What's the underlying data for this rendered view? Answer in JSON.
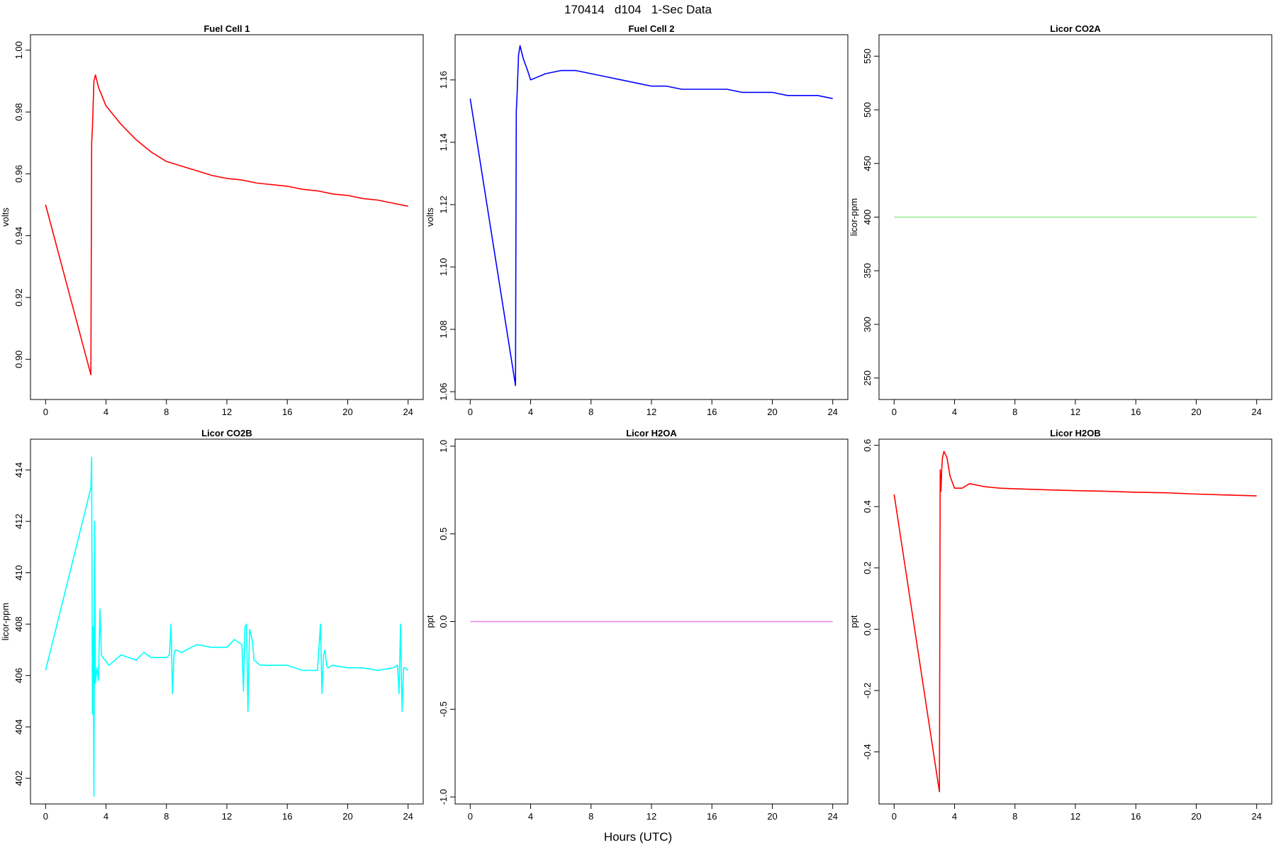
{
  "title": "170414   d104   1-Sec Data",
  "xlabel": "Hours (UTC)",
  "chart_data": [
    {
      "type": "line",
      "title": "Fuel Cell 1",
      "ylabel": "volts",
      "color": "#ff0000",
      "xlim": [
        -1,
        25
      ],
      "ylim": [
        0.887,
        1.005
      ],
      "xticks": [
        0,
        4,
        8,
        12,
        16,
        20,
        24
      ],
      "xticklabels": [
        "0",
        "4",
        "8",
        "12",
        "16",
        "20",
        "24"
      ],
      "yticks": [
        0.9,
        0.92,
        0.94,
        0.96,
        0.98,
        1.0
      ],
      "yticklabels": [
        "0.90",
        "0.92",
        "0.94",
        "0.96",
        "0.98",
        "1.00"
      ],
      "x": [
        0,
        3.0,
        3.05,
        3.1,
        3.2,
        3.3,
        3.5,
        4,
        5,
        6,
        7,
        8,
        9,
        10,
        11,
        12,
        13,
        14,
        15,
        16,
        17,
        18,
        19,
        20,
        21,
        22,
        23,
        24
      ],
      "y": [
        0.95,
        0.895,
        0.97,
        0.975,
        0.99,
        0.992,
        0.988,
        0.982,
        0.976,
        0.971,
        0.967,
        0.964,
        0.9625,
        0.961,
        0.9595,
        0.9585,
        0.958,
        0.957,
        0.9565,
        0.956,
        0.955,
        0.9545,
        0.9535,
        0.953,
        0.952,
        0.9515,
        0.9505,
        0.9495
      ]
    },
    {
      "type": "line",
      "title": "Fuel Cell 2",
      "ylabel": "volts",
      "color": "#0000ff",
      "xlim": [
        -1,
        25
      ],
      "ylim": [
        1.0575,
        1.1745
      ],
      "xticks": [
        0,
        4,
        8,
        12,
        16,
        20,
        24
      ],
      "xticklabels": [
        "0",
        "4",
        "8",
        "12",
        "16",
        "20",
        "24"
      ],
      "yticks": [
        1.06,
        1.08,
        1.1,
        1.12,
        1.14,
        1.16
      ],
      "yticklabels": [
        "1.06",
        "1.08",
        "1.10",
        "1.12",
        "1.14",
        "1.16"
      ],
      "x": [
        0,
        3.0,
        3.05,
        3.1,
        3.2,
        3.3,
        3.5,
        3.8,
        4,
        5,
        6,
        7,
        8,
        9,
        10,
        11,
        12,
        13,
        14,
        15,
        16,
        17,
        18,
        19,
        20,
        21,
        22,
        23,
        24
      ],
      "y": [
        1.154,
        1.062,
        1.15,
        1.155,
        1.168,
        1.171,
        1.167,
        1.163,
        1.16,
        1.162,
        1.163,
        1.163,
        1.162,
        1.161,
        1.16,
        1.159,
        1.158,
        1.158,
        1.157,
        1.157,
        1.157,
        1.157,
        1.156,
        1.156,
        1.156,
        1.155,
        1.155,
        1.155,
        1.154
      ]
    },
    {
      "type": "line",
      "title": "Licor CO2A",
      "ylabel": "licor-ppm",
      "color": "#90ee90",
      "xlim": [
        -1,
        25
      ],
      "ylim": [
        230,
        570
      ],
      "xticks": [
        0,
        4,
        8,
        12,
        16,
        20,
        24
      ],
      "xticklabels": [
        "0",
        "4",
        "8",
        "12",
        "16",
        "20",
        "24"
      ],
      "yticks": [
        250,
        300,
        350,
        400,
        450,
        500,
        550
      ],
      "yticklabels": [
        "250",
        "300",
        "350",
        "400",
        "450",
        "500",
        "550"
      ],
      "x": [
        0,
        24
      ],
      "y": [
        400,
        400
      ]
    },
    {
      "type": "line",
      "title": "Licor CO2B",
      "ylabel": "licor-ppm",
      "color": "#00ffff",
      "xlim": [
        -1,
        25
      ],
      "ylim": [
        401.0,
        415.2
      ],
      "xticks": [
        0,
        4,
        8,
        12,
        16,
        20,
        24
      ],
      "xticklabels": [
        "0",
        "4",
        "8",
        "12",
        "16",
        "20",
        "24"
      ],
      "yticks": [
        402,
        404,
        406,
        408,
        410,
        412,
        414
      ],
      "yticklabels": [
        "402",
        "404",
        "406",
        "408",
        "410",
        "412",
        "414"
      ],
      "x": [
        0,
        3.0,
        3.05,
        3.1,
        3.15,
        3.2,
        3.25,
        3.3,
        3.4,
        3.5,
        3.6,
        3.7,
        3.8,
        4.2,
        5,
        6,
        6.5,
        7,
        8,
        8.2,
        8.3,
        8.4,
        8.5,
        8.6,
        9,
        10,
        11,
        12,
        12.5,
        13,
        13.1,
        13.2,
        13.3,
        13.4,
        13.5,
        13.6,
        13.7,
        13.8,
        14,
        14.2,
        15,
        16,
        17,
        18,
        18.2,
        18.3,
        18.4,
        18.5,
        18.6,
        18.7,
        19,
        20,
        21,
        22,
        23,
        23.3,
        23.4,
        23.5,
        23.6,
        23.7,
        23.8,
        24
      ],
      "y": [
        406.2,
        413.3,
        414.5,
        404.5,
        407.9,
        401.3,
        412.0,
        405.7,
        406.3,
        405.8,
        408.6,
        406.8,
        406.7,
        406.4,
        406.8,
        406.6,
        406.9,
        406.7,
        406.7,
        406.8,
        408.0,
        405.3,
        406.8,
        407.0,
        406.9,
        407.2,
        407.1,
        407.1,
        407.4,
        407.2,
        405.4,
        407.9,
        408.0,
        404.6,
        407.8,
        407.6,
        407.3,
        406.6,
        406.5,
        406.4,
        406.4,
        406.4,
        406.2,
        406.2,
        408.0,
        405.3,
        406.8,
        407.0,
        406.4,
        406.3,
        406.4,
        406.3,
        406.3,
        406.2,
        406.3,
        406.4,
        405.3,
        408.0,
        404.6,
        406.3,
        406.3,
        406.2
      ]
    },
    {
      "type": "line",
      "title": "Licor H2OA",
      "ylabel": "ppt",
      "color": "#ee82ee",
      "xlim": [
        -1,
        25
      ],
      "ylim": [
        -1.04,
        1.04
      ],
      "xticks": [
        0,
        4,
        8,
        12,
        16,
        20,
        24
      ],
      "xticklabels": [
        "0",
        "4",
        "8",
        "12",
        "16",
        "20",
        "24"
      ],
      "yticks": [
        -1.0,
        -0.5,
        0.0,
        0.5,
        1.0
      ],
      "yticklabels": [
        "-1.0",
        "-0.5",
        "0.0",
        "0.5",
        "1.0"
      ],
      "x": [
        0,
        24
      ],
      "y": [
        0,
        0
      ]
    },
    {
      "type": "line",
      "title": "Licor H2OB",
      "ylabel": "ppt",
      "color": "#ff0000",
      "xlim": [
        -1,
        25
      ],
      "ylim": [
        -0.57,
        0.62
      ],
      "xticks": [
        0,
        4,
        8,
        12,
        16,
        20,
        24
      ],
      "xticklabels": [
        "0",
        "4",
        "8",
        "12",
        "16",
        "20",
        "24"
      ],
      "yticks": [
        -0.4,
        -0.2,
        0.0,
        0.2,
        0.4,
        0.6
      ],
      "yticklabels": [
        "-0.4",
        "-0.2",
        "0.0",
        "0.2",
        "0.4",
        "0.6"
      ],
      "x": [
        0,
        3.0,
        3.05,
        3.1,
        3.15,
        3.2,
        3.3,
        3.5,
        3.7,
        4.0,
        4.5,
        5,
        6,
        7,
        8,
        10,
        12,
        14,
        16,
        18,
        20,
        22,
        24
      ],
      "y": [
        0.44,
        -0.53,
        0.52,
        0.45,
        0.52,
        0.56,
        0.58,
        0.56,
        0.5,
        0.46,
        0.46,
        0.475,
        0.465,
        0.46,
        0.458,
        0.455,
        0.452,
        0.45,
        0.447,
        0.445,
        0.441,
        0.438,
        0.435
      ]
    }
  ]
}
